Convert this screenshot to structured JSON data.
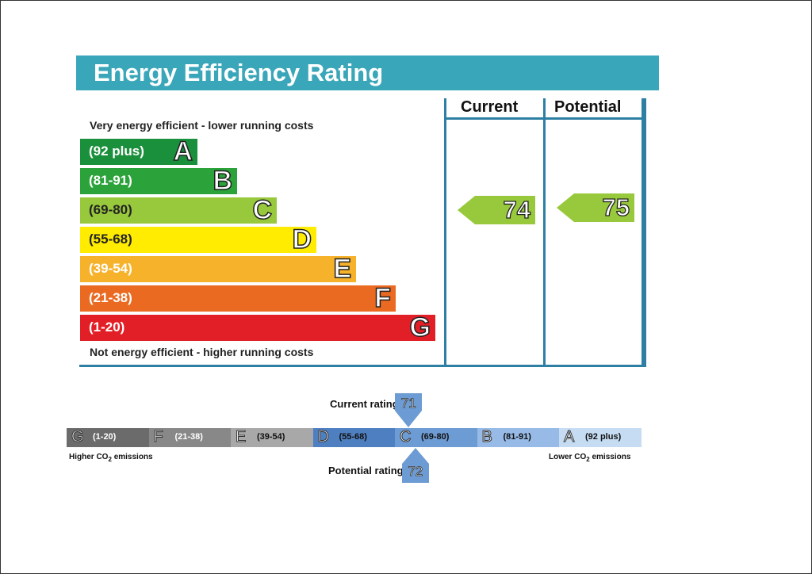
{
  "chart_data": [
    {
      "type": "bar",
      "title": "Energy Efficiency Rating",
      "top_caption": "Very energy efficient - lower running costs",
      "bottom_caption": "Not energy efficient - higher running costs",
      "columns": [
        "Current",
        "Potential"
      ],
      "bands": [
        {
          "letter": "A",
          "range": "(92 plus)",
          "color": "#1a8f3c"
        },
        {
          "letter": "B",
          "range": "(81-91)",
          "color": "#2ba23a"
        },
        {
          "letter": "C",
          "range": "(69-80)",
          "color": "#98c93c"
        },
        {
          "letter": "D",
          "range": "(55-68)",
          "color": "#ffec00"
        },
        {
          "letter": "E",
          "range": "(39-54)",
          "color": "#f7b22b"
        },
        {
          "letter": "F",
          "range": "(21-38)",
          "color": "#ea6a21"
        },
        {
          "letter": "G",
          "range": "(1-20)",
          "color": "#e21f26"
        }
      ],
      "current": {
        "value": 74,
        "band": "C"
      },
      "potential": {
        "value": 75,
        "band": "C"
      }
    },
    {
      "type": "bar",
      "current_label": "Current rating",
      "potential_label": "Potential rating",
      "left_label": "Higher CO",
      "right_label": "Lower CO",
      "label_suffix": "emissions",
      "segments": [
        {
          "letter": "G",
          "range": "(1-20)",
          "color": "#6b6b6b",
          "text": "#ffffff"
        },
        {
          "letter": "F",
          "range": "(21-38)",
          "color": "#888888",
          "text": "#ffffff"
        },
        {
          "letter": "E",
          "range": "(39-54)",
          "color": "#a8a8a8",
          "text": "#111111"
        },
        {
          "letter": "D",
          "range": "(55-68)",
          "color": "#4e7fc0",
          "text": "#111111"
        },
        {
          "letter": "C",
          "range": "(69-80)",
          "color": "#6d9bd3",
          "text": "#111111"
        },
        {
          "letter": "B",
          "range": "(81-91)",
          "color": "#97bae6",
          "text": "#111111"
        },
        {
          "letter": "A",
          "range": "(92 plus)",
          "color": "#c6dcf3",
          "text": "#111111"
        }
      ],
      "current": {
        "value": 71
      },
      "potential": {
        "value": 72
      },
      "marker_color": "#6d9bd3"
    }
  ]
}
